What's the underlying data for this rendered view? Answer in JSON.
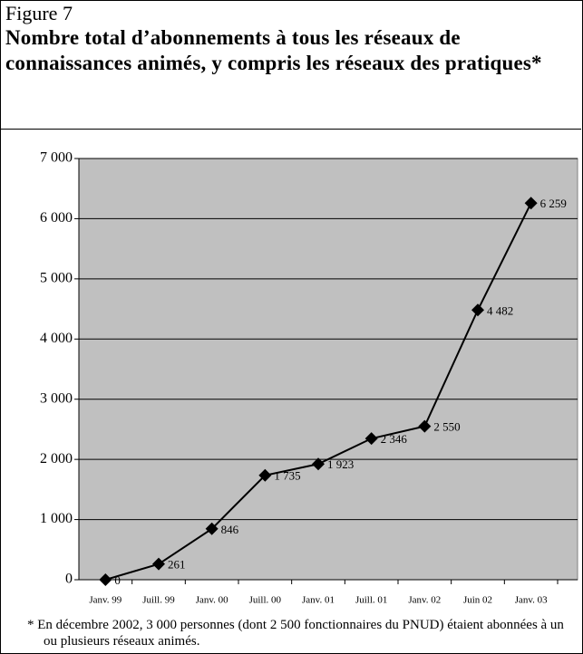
{
  "chart_data": {
    "type": "line",
    "figure_label": "Figure 7",
    "title": "Nombre total d’abonnements à tous les réseaux de connaissances animés, y compris les réseaux des pratiques*",
    "categories": [
      "Janv. 99",
      "Juill. 99",
      "Janv. 00",
      "Juill. 00",
      "Janv. 01",
      "Juill. 01",
      "Janv. 02",
      "Juin 02",
      "Janv. 03"
    ],
    "values": [
      0,
      261,
      846,
      1735,
      1923,
      2346,
      2550,
      4482,
      6259
    ],
    "value_labels": [
      "0",
      "261",
      "846",
      "1 735",
      "1 923",
      "2 346",
      "2 550",
      "4 482",
      "6 259"
    ],
    "color": "#000000",
    "ylim": [
      0,
      7000
    ],
    "yticks": [
      0,
      {
        "value": 1000,
        "label": "1 000"
      },
      {
        "value": 2000,
        "label": "2 000"
      },
      {
        "value": 3000,
        "label": "3 000"
      },
      {
        "value": 4000,
        "label": "4 000"
      },
      {
        "value": 5000,
        "label": "5 000"
      },
      {
        "value": 6000,
        "label": "6 000"
      },
      {
        "value": 7000,
        "label": "7 000"
      }
    ],
    "grid": true,
    "footnote": "* En décembre 2002, 3 000 personnes (dont 2 500 fonctionnaires du PNUD) étaient abonnées à un ou plusieurs réseaux animés."
  }
}
